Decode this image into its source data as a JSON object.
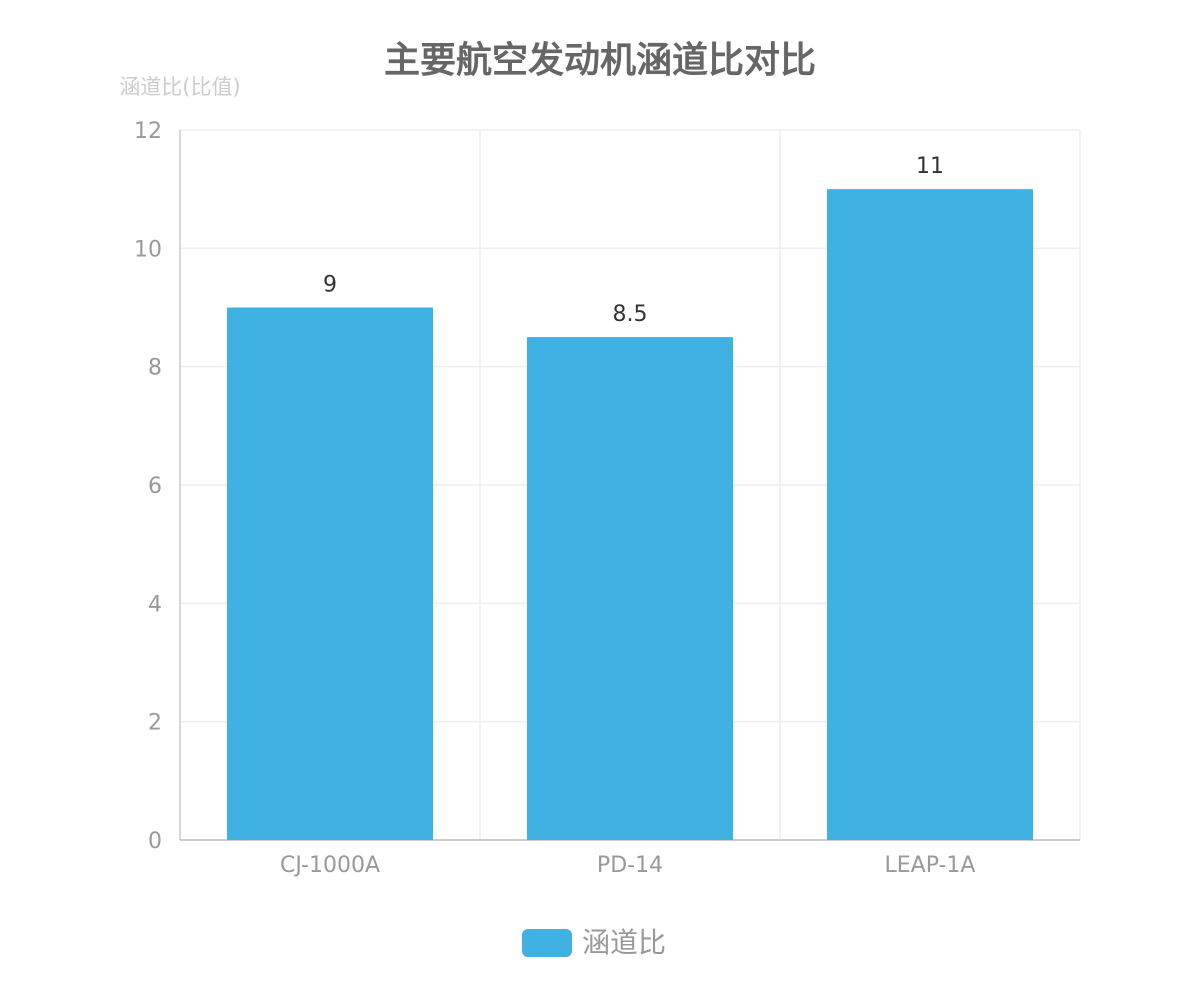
{
  "chart_data": {
    "type": "bar",
    "title": "主要航空发动机涵道比对比",
    "ylabel": "涵道比(比值)",
    "xlabel": "",
    "categories": [
      "CJ-1000A",
      "PD-14",
      "LEAP-1A"
    ],
    "series": [
      {
        "name": "涵道比",
        "values": [
          9,
          8.5,
          11
        ]
      }
    ],
    "data_labels": [
      "9",
      "8.5",
      "11"
    ],
    "ylim": [
      0,
      12
    ],
    "yticks": [
      0,
      2,
      4,
      6,
      8,
      10,
      12
    ],
    "ytick_labels": [
      "0",
      "2",
      "4",
      "6",
      "8",
      "10",
      "12"
    ],
    "grid": true,
    "legend_position": "bottom",
    "colors": {
      "bar": "#3fb1e3",
      "title": "#666666",
      "axis_label": "#cccccc",
      "tick": "#999999",
      "grid": "#eeeeee"
    }
  }
}
